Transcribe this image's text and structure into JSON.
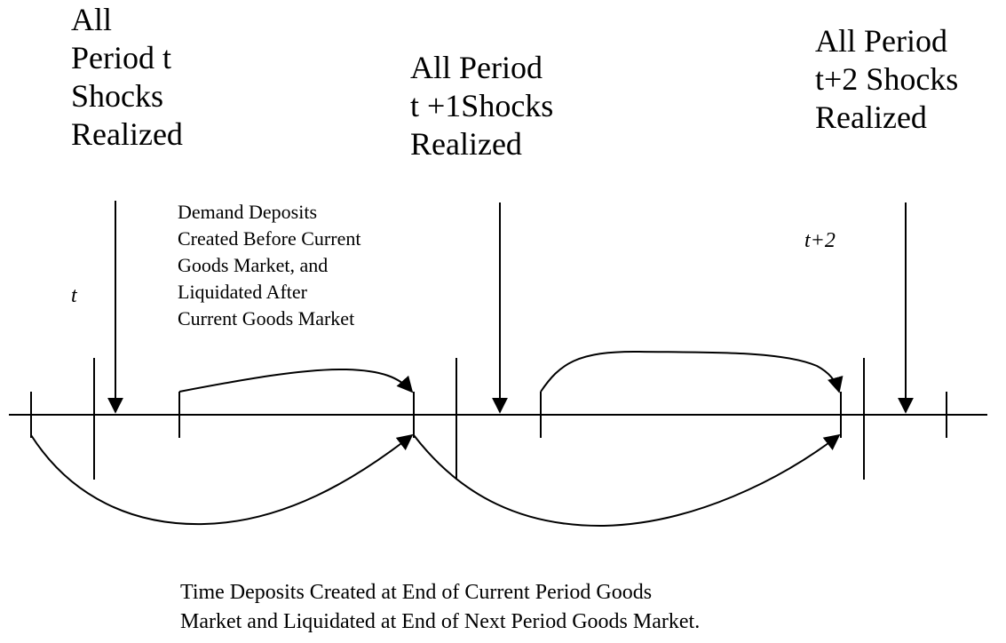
{
  "shock_labels": [
    {
      "lines": [
        "All",
        "Period  t",
        "Shocks",
        "Realized"
      ]
    },
    {
      "lines": [
        "All Period",
        "t +1Shocks",
        "Realized"
      ]
    },
    {
      "lines": [
        "All Period",
        "t+2 Shocks",
        "Realized"
      ]
    }
  ],
  "period_labels": [
    "t",
    "t+2"
  ],
  "demand_deposits_note": {
    "lines": [
      "Demand Deposits",
      "Created Before Current",
      "Goods Market, and",
      "Liquidated After",
      "Current Goods Market"
    ]
  },
  "time_deposits_note": {
    "lines": [
      "Time Deposits Created at End of Current Period Goods",
      "Market and Liquidated at End of Next Period Goods Market."
    ]
  }
}
